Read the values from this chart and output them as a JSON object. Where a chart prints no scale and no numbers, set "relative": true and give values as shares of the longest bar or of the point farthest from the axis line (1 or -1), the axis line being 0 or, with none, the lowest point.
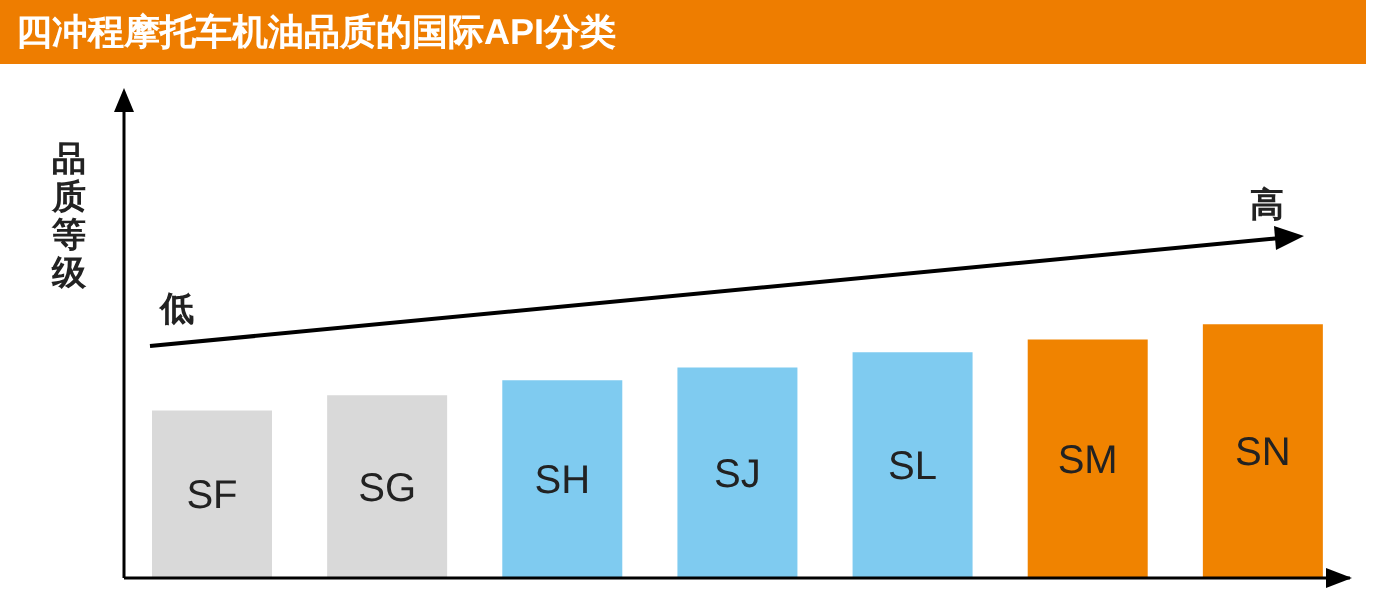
{
  "chart_data": {
    "type": "bar",
    "title": "四冲程摩托车机油品质的国际API分类",
    "ylabel": "品质等级",
    "annotations": [
      "低",
      "高"
    ],
    "categories": [
      "SF",
      "SG",
      "SH",
      "SJ",
      "SL",
      "SM",
      "SN"
    ],
    "values": [
      0.66,
      0.72,
      0.78,
      0.83,
      0.89,
      0.94,
      1
    ],
    "colors": [
      "#d9d9d9",
      "#d9d9d9",
      "#7fcbf0",
      "#7fcbf0",
      "#7fcbf0",
      "#f08300",
      "#f08300"
    ],
    "relative": true,
    "legend": false,
    "grid": false
  }
}
